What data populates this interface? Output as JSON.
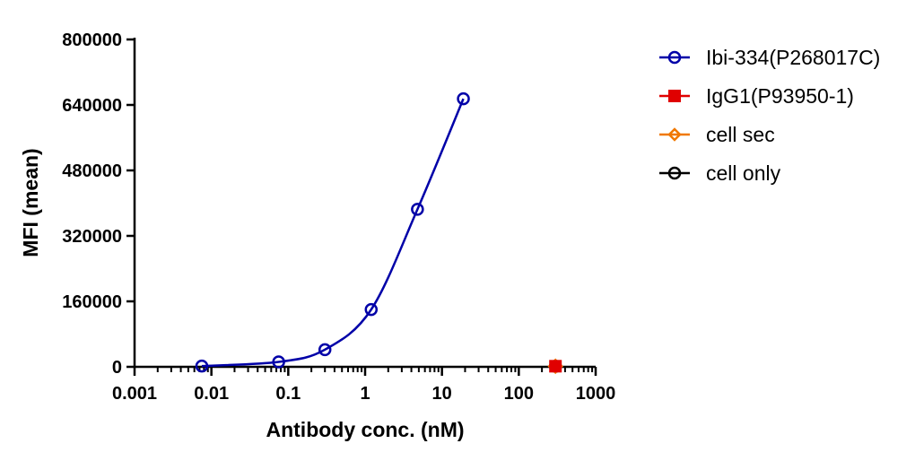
{
  "chart_data": {
    "type": "scatter",
    "xscale": "log",
    "xlabel": "Antibody conc. (nM)",
    "ylabel": "MFI (mean)",
    "xlim": [
      0.001,
      1000
    ],
    "ylim": [
      0,
      800000
    ],
    "x_ticks": [
      "0.001",
      "0.01",
      "0.1",
      "1",
      "10",
      "100",
      "1000"
    ],
    "y_ticks": [
      "0",
      "160000",
      "320000",
      "480000",
      "640000",
      "800000"
    ],
    "legend_position": "right",
    "series": [
      {
        "name": "Ibi-334(P268017C)",
        "color": "#0000a8",
        "marker": "circle",
        "fit_curve": true,
        "x": [
          0.0075,
          0.075,
          0.3,
          1.2,
          4.8,
          19
        ],
        "y": [
          2000,
          12000,
          42000,
          140000,
          385000,
          655000
        ]
      },
      {
        "name": "IgG1(P93950-1)",
        "color": "#e00000",
        "marker": "square",
        "fit_curve": false,
        "x": [
          300
        ],
        "y": [
          1500
        ]
      },
      {
        "name": "cell sec",
        "color": "#f07800",
        "marker": "diamond",
        "fit_curve": false,
        "x": [
          300
        ],
        "y": [
          1500
        ]
      },
      {
        "name": "cell only",
        "color": "#000000",
        "marker": "circle",
        "fit_curve": false,
        "x": [
          300
        ],
        "y": [
          1500
        ]
      }
    ]
  }
}
